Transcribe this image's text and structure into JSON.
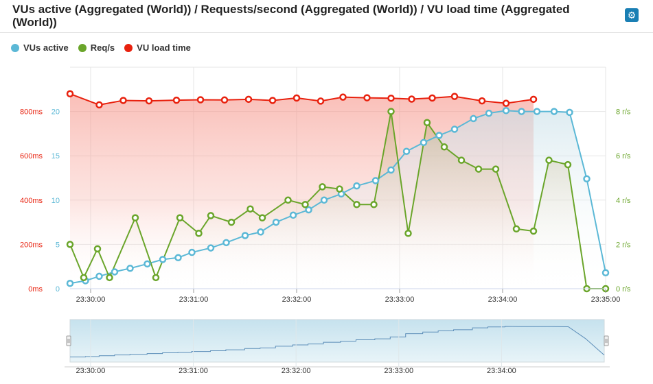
{
  "header": {
    "title": "VUs active (Aggregated (World)) / Requests/second (Aggregated (World)) / VU load time (Aggregated (World))",
    "settings_icon": "gear-icon"
  },
  "legend": [
    {
      "label": "VUs active",
      "color": "#5bb8d6"
    },
    {
      "label": "Req/s",
      "color": "#6aa52a"
    },
    {
      "label": "VU load time",
      "color": "#e8210e"
    }
  ],
  "chart_data": {
    "type": "line",
    "x": [
      "23:29:48",
      "23:29:52",
      "23:29:56",
      "23:30:04",
      "23:30:12",
      "23:30:20",
      "23:30:28",
      "23:30:40",
      "23:30:50",
      "23:31:00",
      "23:31:10",
      "23:31:20",
      "23:31:30",
      "23:31:40",
      "23:31:50",
      "23:32:00",
      "23:32:10",
      "23:32:20",
      "23:32:30",
      "23:32:40",
      "23:32:50",
      "23:33:00",
      "23:33:10",
      "23:33:20",
      "23:33:30",
      "23:33:40",
      "23:33:50",
      "23:34:00",
      "23:34:10",
      "23:34:20",
      "23:34:30",
      "23:34:40",
      "23:34:50",
      "23:35:00"
    ],
    "series": [
      {
        "name": "VUs active",
        "axis": "vus",
        "color": "#5bb8d6",
        "points": [
          [
            "23:29:48",
            0.6
          ],
          [
            "23:29:57",
            0.9
          ],
          [
            "23:30:05",
            1.4
          ],
          [
            "23:30:14",
            1.9
          ],
          [
            "23:30:23",
            2.3
          ],
          [
            "23:30:33",
            2.8
          ],
          [
            "23:30:42",
            3.3
          ],
          [
            "23:30:51",
            3.5
          ],
          [
            "23:30:59",
            4.1
          ],
          [
            "23:31:10",
            4.6
          ],
          [
            "23:31:19",
            5.2
          ],
          [
            "23:31:30",
            6.0
          ],
          [
            "23:31:39",
            6.4
          ],
          [
            "23:31:48",
            7.5
          ],
          [
            "23:31:58",
            8.3
          ],
          [
            "23:32:07",
            8.9
          ],
          [
            "23:32:16",
            10.0
          ],
          [
            "23:32:26",
            10.7
          ],
          [
            "23:32:35",
            11.6
          ],
          [
            "23:32:46",
            12.2
          ],
          [
            "23:32:55",
            13.4
          ],
          [
            "23:33:04",
            15.5
          ],
          [
            "23:33:14",
            16.5
          ],
          [
            "23:33:23",
            17.3
          ],
          [
            "23:33:32",
            18.0
          ],
          [
            "23:33:43",
            19.2
          ],
          [
            "23:33:52",
            19.8
          ],
          [
            "23:34:02",
            20.1
          ],
          [
            "23:34:11",
            20.0
          ],
          [
            "23:34:20",
            20.0
          ],
          [
            "23:34:30",
            20.0
          ],
          [
            "23:34:39",
            19.9
          ],
          [
            "23:34:49",
            12.4
          ],
          [
            "23:35:00",
            1.8
          ]
        ]
      },
      {
        "name": "Req/s",
        "axis": "reqs",
        "color": "#6aa52a",
        "points": [
          [
            "23:29:48",
            2.0
          ],
          [
            "23:29:56",
            0.5
          ],
          [
            "23:30:04",
            1.8
          ],
          [
            "23:30:11",
            0.5
          ],
          [
            "23:30:26",
            3.2
          ],
          [
            "23:30:38",
            0.5
          ],
          [
            "23:30:52",
            3.2
          ],
          [
            "23:31:03",
            2.5
          ],
          [
            "23:31:10",
            3.3
          ],
          [
            "23:31:22",
            3.0
          ],
          [
            "23:31:33",
            3.6
          ],
          [
            "23:31:40",
            3.2
          ],
          [
            "23:31:55",
            4.0
          ],
          [
            "23:32:05",
            3.8
          ],
          [
            "23:32:15",
            4.6
          ],
          [
            "23:32:25",
            4.5
          ],
          [
            "23:32:35",
            3.8
          ],
          [
            "23:32:45",
            3.8
          ],
          [
            "23:32:55",
            8.0
          ],
          [
            "23:33:05",
            2.5
          ],
          [
            "23:33:16",
            7.5
          ],
          [
            "23:33:26",
            6.4
          ],
          [
            "23:33:36",
            5.8
          ],
          [
            "23:33:46",
            5.4
          ],
          [
            "23:33:56",
            5.4
          ],
          [
            "23:34:08",
            2.7
          ],
          [
            "23:34:18",
            2.6
          ],
          [
            "23:34:27",
            5.8
          ],
          [
            "23:34:38",
            5.6
          ],
          [
            "23:34:49",
            0.0
          ],
          [
            "23:35:00",
            0.0
          ]
        ]
      },
      {
        "name": "VU load time",
        "axis": "loadtime",
        "color": "#e8210e",
        "points": [
          [
            "23:29:48",
            880
          ],
          [
            "23:30:05",
            830
          ],
          [
            "23:30:19",
            850
          ],
          [
            "23:30:34",
            848
          ],
          [
            "23:30:50",
            851
          ],
          [
            "23:31:04",
            853
          ],
          [
            "23:31:18",
            852
          ],
          [
            "23:31:32",
            855
          ],
          [
            "23:31:46",
            850
          ],
          [
            "23:32:00",
            861
          ],
          [
            "23:32:14",
            847
          ],
          [
            "23:32:27",
            865
          ],
          [
            "23:32:41",
            862
          ],
          [
            "23:32:55",
            860
          ],
          [
            "23:33:07",
            856
          ],
          [
            "23:33:19",
            861
          ],
          [
            "23:33:32",
            868
          ],
          [
            "23:33:48",
            848
          ],
          [
            "23:34:02",
            837
          ],
          [
            "23:34:18",
            855
          ]
        ]
      }
    ],
    "axes": {
      "loadtime": {
        "label": "",
        "ticks": [
          "0ms",
          "200ms",
          "400ms",
          "600ms",
          "800ms"
        ],
        "range": [
          0,
          1000
        ],
        "color": "#e8210e"
      },
      "vus": {
        "label": "",
        "ticks": [
          "0",
          "5",
          "10",
          "15",
          "20"
        ],
        "range": [
          0,
          25
        ],
        "color": "#5bb8d6"
      },
      "reqs": {
        "label": "",
        "ticks": [
          "0 r/s",
          "2 r/s",
          "4 r/s",
          "6 r/s",
          "8 r/s"
        ],
        "range": [
          0,
          10
        ],
        "color": "#6aa52a"
      }
    },
    "x_ticks": [
      "23:30:00",
      "23:31:00",
      "23:32:00",
      "23:33:00",
      "23:34:00",
      "23:35:00"
    ],
    "navigator_ticks": [
      "23:30:00",
      "23:31:00",
      "23:32:00",
      "23:33:00",
      "23:34:00"
    ],
    "grid": true,
    "legend_position": "top-left"
  }
}
